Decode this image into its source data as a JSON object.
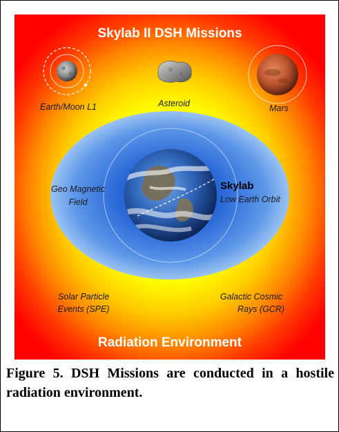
{
  "diagram": {
    "title": "Skylab II DSH Missions",
    "footer": "Radiation Environment",
    "destinations": {
      "l1": "Earth/Moon L1",
      "asteroid": "Asteroid",
      "mars": "Mars"
    },
    "geo_field": [
      "Geo Magnetic",
      "Field"
    ],
    "skylab": {
      "name": "Skylab",
      "orbit": "Low Earth Orbit"
    },
    "hazards": {
      "spe": [
        "Solar Particle",
        "Events (SPE)"
      ],
      "gcr": [
        "Galactic Cosmic",
        "Rays (GCR)"
      ]
    },
    "colors": {
      "outer": "#ff0000",
      "inner": "#ffff00",
      "magnetosphere": "#1f5fd0"
    }
  },
  "caption": "Figure 5. DSH Missions are conducted in a hostile radiation environment."
}
